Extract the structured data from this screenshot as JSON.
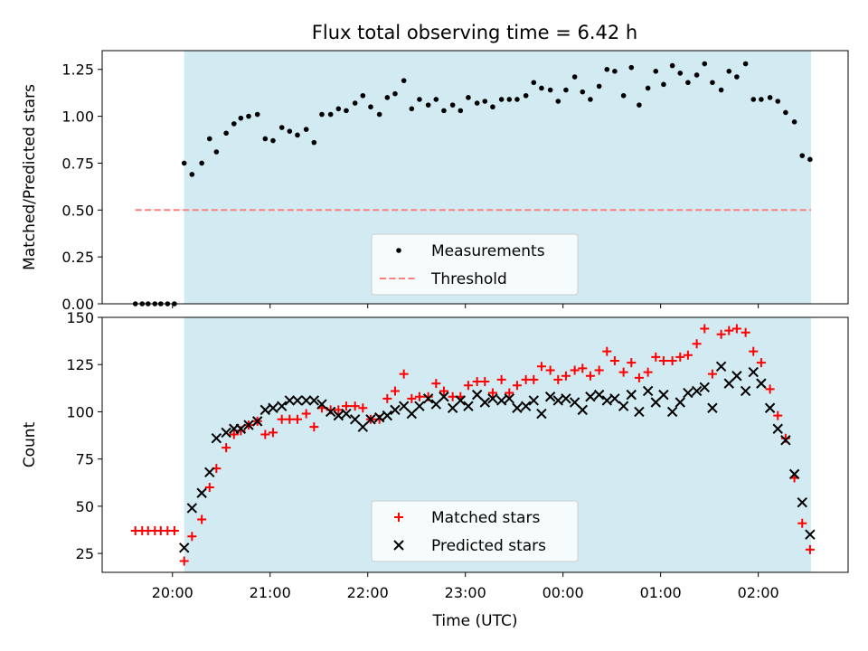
{
  "figure": {
    "title": "Flux total observing time = 6.42 h"
  },
  "colors": {
    "shade": "#add8e6",
    "measurement": "#000000",
    "threshold": "#ff7f7f",
    "matched": "#ff0000",
    "predicted": "#000000"
  },
  "chart_data": [
    {
      "type": "scatter",
      "title": "Flux total observing time = 6.42 h",
      "xlabel": "",
      "ylabel": "Matched/Predicted stars",
      "x_unit": "hours since 20:00 UTC",
      "xlim": [
        -0.72,
        6.92
      ],
      "ylim": [
        0,
        1.35
      ],
      "xticks": [
        {
          "value": 0,
          "label": "20:00"
        },
        {
          "value": 1,
          "label": "21:00"
        },
        {
          "value": 2,
          "label": "22:00"
        },
        {
          "value": 3,
          "label": "23:00"
        },
        {
          "value": 4,
          "label": "00:00"
        },
        {
          "value": 5,
          "label": "01:00"
        },
        {
          "value": 6,
          "label": "02:00"
        }
      ],
      "yticks": [
        "0.00",
        "0.25",
        "0.50",
        "0.75",
        "1.00",
        "1.25"
      ],
      "shaded_span": [
        0.12,
        6.54
      ],
      "grid": false,
      "legend_position": "bottom-center",
      "series": [
        {
          "name": "Measurements",
          "marker": "dot",
          "x": [
            -0.38,
            -0.31,
            -0.25,
            -0.18,
            -0.12,
            -0.05,
            0.02,
            0.12,
            0.2,
            0.3,
            0.38,
            0.45,
            0.55,
            0.63,
            0.7,
            0.78,
            0.87,
            0.95,
            1.03,
            1.12,
            1.2,
            1.28,
            1.37,
            1.45,
            1.53,
            1.62,
            1.7,
            1.78,
            1.87,
            1.95,
            2.03,
            2.12,
            2.2,
            2.28,
            2.37,
            2.45,
            2.53,
            2.62,
            2.7,
            2.78,
            2.87,
            2.95,
            3.03,
            3.12,
            3.2,
            3.28,
            3.37,
            3.45,
            3.53,
            3.62,
            3.7,
            3.78,
            3.87,
            3.95,
            4.03,
            4.12,
            4.2,
            4.28,
            4.37,
            4.45,
            4.53,
            4.62,
            4.7,
            4.78,
            4.87,
            4.95,
            5.03,
            5.12,
            5.2,
            5.28,
            5.37,
            5.45,
            5.53,
            5.62,
            5.7,
            5.78,
            5.87,
            5.95,
            6.03,
            6.12,
            6.2,
            6.28,
            6.37,
            6.45,
            6.53
          ],
          "y": [
            0,
            0,
            0,
            0,
            0,
            0,
            0,
            0.75,
            0.69,
            0.75,
            0.88,
            0.81,
            0.91,
            0.96,
            0.99,
            1.0,
            1.01,
            0.88,
            0.87,
            0.94,
            0.92,
            0.9,
            0.93,
            0.86,
            1.01,
            1.01,
            1.04,
            1.03,
            1.07,
            1.11,
            1.05,
            1.01,
            1.1,
            1.12,
            1.19,
            1.04,
            1.09,
            1.06,
            1.09,
            1.03,
            1.06,
            1.03,
            1.1,
            1.07,
            1.08,
            1.05,
            1.09,
            1.09,
            1.09,
            1.11,
            1.18,
            1.15,
            1.14,
            1.08,
            1.14,
            1.21,
            1.13,
            1.09,
            1.16,
            1.25,
            1.24,
            1.11,
            1.26,
            1.06,
            1.15,
            1.24,
            1.17,
            1.27,
            1.23,
            1.18,
            1.22,
            1.28,
            1.18,
            1.14,
            1.24,
            1.21,
            1.28,
            1.09,
            1.09,
            1.1,
            1.08,
            1.02,
            0.97,
            0.79,
            0.77
          ]
        },
        {
          "name": "Threshold",
          "style": "dashed-line",
          "x": [
            -0.38,
            6.54
          ],
          "y": [
            0.5,
            0.5
          ]
        }
      ]
    },
    {
      "type": "scatter",
      "title": "",
      "xlabel": "Time (UTC)",
      "ylabel": "Count",
      "x_unit": "hours since 20:00 UTC",
      "xlim": [
        -0.72,
        6.92
      ],
      "ylim": [
        15,
        150
      ],
      "xticks": [
        {
          "value": 0,
          "label": "20:00"
        },
        {
          "value": 1,
          "label": "21:00"
        },
        {
          "value": 2,
          "label": "22:00"
        },
        {
          "value": 3,
          "label": "23:00"
        },
        {
          "value": 4,
          "label": "00:00"
        },
        {
          "value": 5,
          "label": "01:00"
        },
        {
          "value": 6,
          "label": "02:00"
        }
      ],
      "yticks": [
        "25",
        "50",
        "75",
        "100",
        "125",
        "150"
      ],
      "shaded_span": [
        0.12,
        6.54
      ],
      "grid": false,
      "legend_position": "bottom-center",
      "series": [
        {
          "name": "Matched stars",
          "marker": "plus",
          "x": [
            -0.38,
            -0.31,
            -0.25,
            -0.18,
            -0.12,
            -0.05,
            0.02,
            0.12,
            0.2,
            0.3,
            0.38,
            0.45,
            0.55,
            0.63,
            0.7,
            0.78,
            0.87,
            0.95,
            1.03,
            1.12,
            1.2,
            1.28,
            1.37,
            1.45,
            1.53,
            1.62,
            1.7,
            1.78,
            1.87,
            1.95,
            2.03,
            2.12,
            2.2,
            2.28,
            2.37,
            2.45,
            2.53,
            2.62,
            2.7,
            2.78,
            2.87,
            2.95,
            3.03,
            3.12,
            3.2,
            3.28,
            3.37,
            3.45,
            3.53,
            3.62,
            3.7,
            3.78,
            3.87,
            3.95,
            4.03,
            4.12,
            4.2,
            4.28,
            4.37,
            4.45,
            4.53,
            4.62,
            4.7,
            4.78,
            4.87,
            4.95,
            5.03,
            5.12,
            5.2,
            5.28,
            5.37,
            5.45,
            5.53,
            5.62,
            5.7,
            5.78,
            5.87,
            5.95,
            6.03,
            6.12,
            6.2,
            6.28,
            6.37,
            6.45,
            6.53
          ],
          "y": [
            37,
            37,
            37,
            37,
            37,
            37,
            37,
            21,
            34,
            43,
            60,
            70,
            81,
            88,
            90,
            93,
            95,
            88,
            89,
            96,
            96,
            96,
            99,
            92,
            102,
            101,
            101,
            103,
            103,
            102,
            96,
            96,
            107,
            111,
            120,
            107,
            108,
            108,
            115,
            111,
            108,
            108,
            114,
            116,
            116,
            110,
            117,
            110,
            114,
            117,
            117,
            124,
            122,
            117,
            119,
            122,
            123,
            119,
            122,
            132,
            127,
            121,
            126,
            118,
            121,
            129,
            127,
            127,
            129,
            130,
            136,
            144,
            120,
            141,
            143,
            144,
            142,
            132,
            126,
            112,
            98,
            86,
            65,
            41,
            27
          ]
        },
        {
          "name": "Predicted stars",
          "marker": "x",
          "x": [
            0.12,
            0.2,
            0.3,
            0.38,
            0.45,
            0.55,
            0.63,
            0.7,
            0.78,
            0.87,
            0.95,
            1.03,
            1.12,
            1.2,
            1.28,
            1.37,
            1.45,
            1.53,
            1.62,
            1.7,
            1.78,
            1.87,
            1.95,
            2.03,
            2.12,
            2.2,
            2.28,
            2.37,
            2.45,
            2.53,
            2.62,
            2.7,
            2.78,
            2.87,
            2.95,
            3.03,
            3.12,
            3.2,
            3.28,
            3.37,
            3.45,
            3.53,
            3.62,
            3.7,
            3.78,
            3.87,
            3.95,
            4.03,
            4.12,
            4.2,
            4.28,
            4.37,
            4.45,
            4.53,
            4.62,
            4.7,
            4.78,
            4.87,
            4.95,
            5.03,
            5.12,
            5.2,
            5.28,
            5.37,
            5.45,
            5.53,
            5.62,
            5.7,
            5.78,
            5.87,
            5.95,
            6.03,
            6.12,
            6.2,
            6.28,
            6.37,
            6.45,
            6.53
          ],
          "y": [
            28,
            49,
            57,
            68,
            86,
            89,
            91,
            91,
            93,
            95,
            101,
            102,
            103,
            106,
            106,
            106,
            106,
            104,
            100,
            98,
            99,
            96,
            92,
            96,
            97,
            98,
            101,
            103,
            99,
            103,
            107,
            104,
            108,
            102,
            106,
            103,
            109,
            105,
            107,
            106,
            107,
            102,
            103,
            106,
            99,
            108,
            106,
            107,
            105,
            101,
            108,
            109,
            106,
            107,
            103,
            109,
            100,
            111,
            105,
            109,
            100,
            105,
            110,
            111,
            113,
            102,
            124,
            115,
            119,
            111,
            121,
            115,
            102,
            91,
            85,
            67,
            52,
            35
          ]
        }
      ]
    }
  ]
}
